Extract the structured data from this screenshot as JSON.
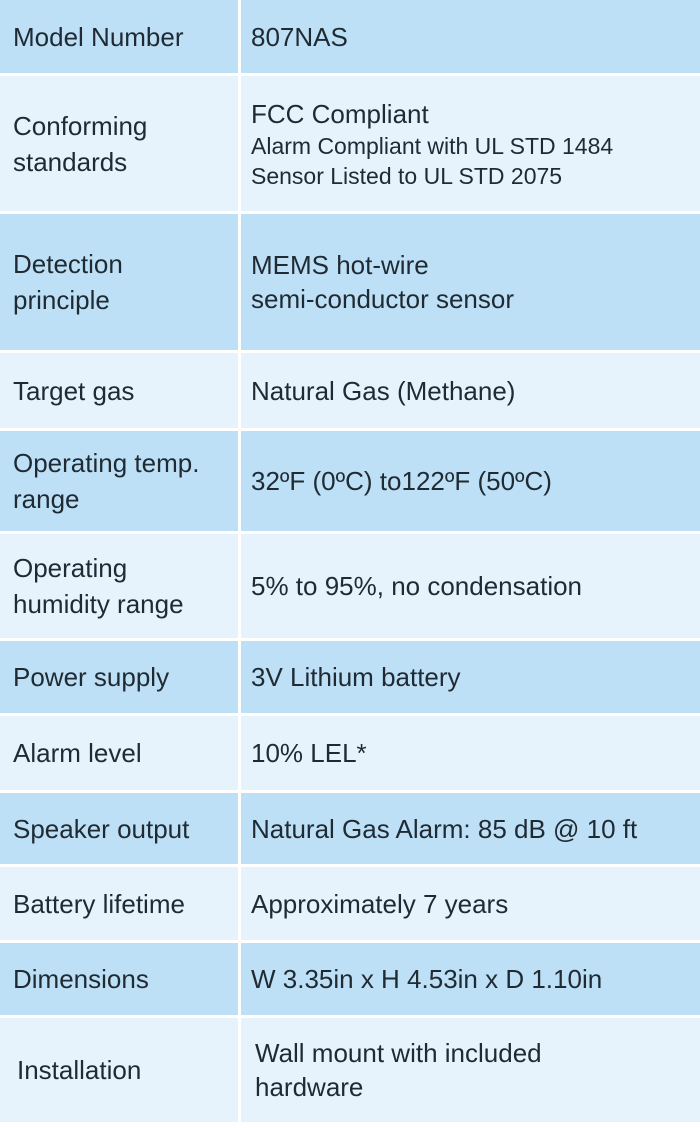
{
  "colors": {
    "row_dark": "#bde0f6",
    "row_light": "#e6f3fc",
    "text": "#1f2a33"
  },
  "rows": [
    {
      "label": "Model Number",
      "values": [
        "807NAS"
      ]
    },
    {
      "label": "Conforming standards",
      "values": [
        "FCC Compliant",
        "Alarm Compliant with UL STD 1484",
        "Sensor Listed to UL STD 2075"
      ]
    },
    {
      "label": "Detection principle",
      "values": [
        "MEMS hot-wire",
        "semi-conductor sensor"
      ]
    },
    {
      "label": "Target gas",
      "values": [
        "Natural Gas (Methane)"
      ]
    },
    {
      "label": "Operating temp. range",
      "values": [
        "32ºF (0ºC) to122ºF (50ºC)"
      ]
    },
    {
      "label": "Operating humidity range",
      "values": [
        "5% to 95%, no condensation"
      ]
    },
    {
      "label": "Power supply",
      "values": [
        "3V Lithium battery"
      ]
    },
    {
      "label": "Alarm level",
      "values": [
        "10% LEL*"
      ]
    },
    {
      "label": "Speaker output",
      "values": [
        "Natural Gas Alarm: 85 dB @ 10 ft"
      ]
    },
    {
      "label": "Battery lifetime",
      "values": [
        "Approximately 7 years"
      ]
    },
    {
      "label": "Dimensions",
      "values": [
        "W 3.35in x H 4.53in x D 1.10in"
      ]
    },
    {
      "label": "Installation",
      "values": [
        "Wall mount with included",
        "hardware"
      ]
    }
  ]
}
